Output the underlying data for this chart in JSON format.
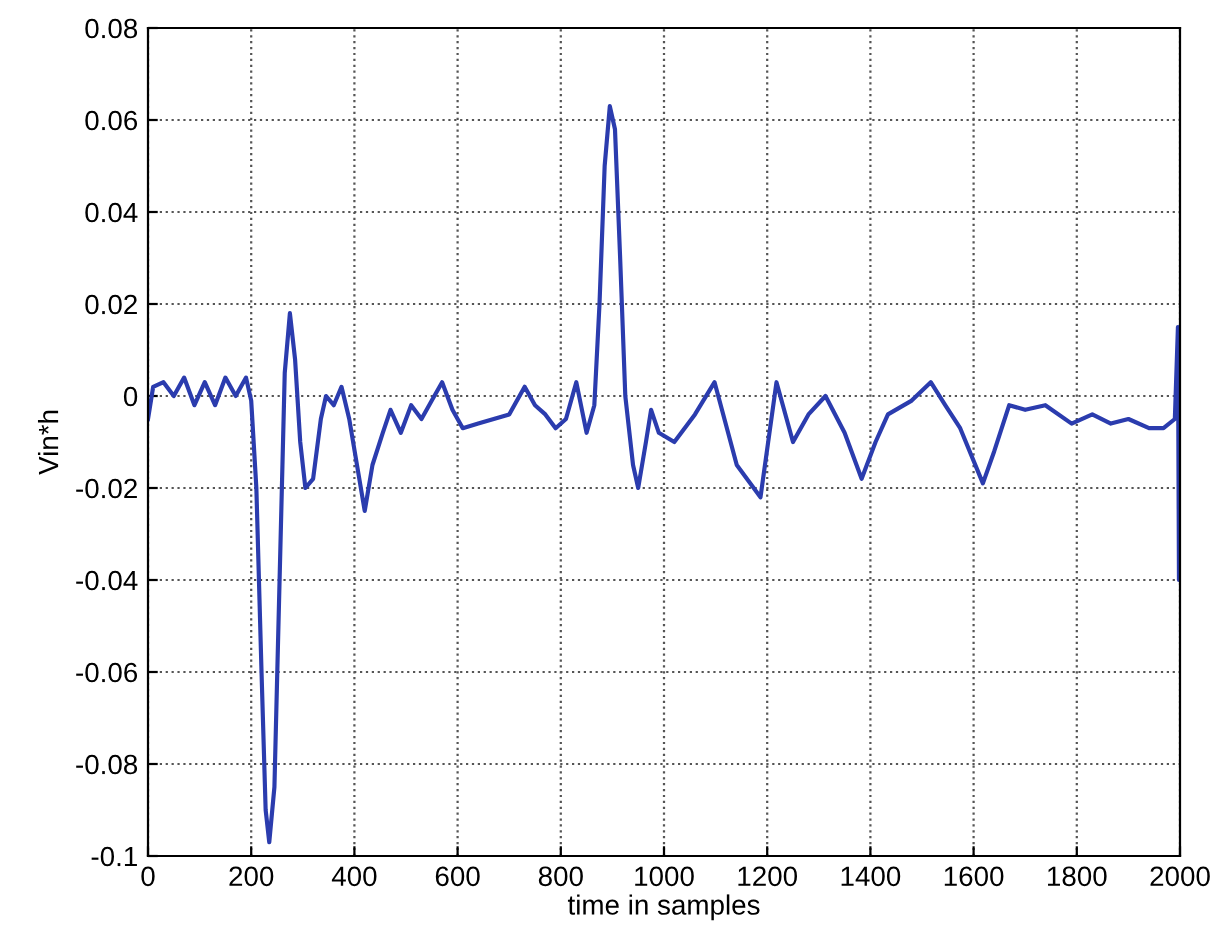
{
  "chart_data": {
    "type": "line",
    "xlabel": "time in samples",
    "ylabel": "Vin*h",
    "xlim": [
      0,
      2000
    ],
    "ylim": [
      -0.1,
      0.08
    ],
    "xticks": [
      0,
      200,
      400,
      600,
      800,
      1000,
      1200,
      1400,
      1600,
      1800,
      2000
    ],
    "yticks": [
      -0.1,
      -0.08,
      -0.06,
      -0.04,
      -0.02,
      0,
      0.02,
      0.04,
      0.06,
      0.08
    ],
    "grid": true,
    "line_style": "solid",
    "marker": "none",
    "series": [
      {
        "color": "#2b3cae",
        "x": [
          0,
          10,
          30,
          50,
          70,
          90,
          110,
          130,
          150,
          170,
          190,
          200,
          210,
          220,
          228,
          235,
          245,
          255,
          265,
          275,
          285,
          295,
          305,
          320,
          335,
          345,
          360,
          375,
          390,
          405,
          420,
          435,
          455,
          470,
          490,
          510,
          530,
          550,
          570,
          590,
          610,
          640,
          670,
          700,
          730,
          750,
          770,
          790,
          810,
          830,
          850,
          865,
          875,
          885,
          895,
          905,
          915,
          925,
          940,
          950,
          965,
          975,
          990,
          1020,
          1060,
          1098,
          1141,
          1187,
          1218,
          1250,
          1280,
          1313,
          1350,
          1383,
          1410,
          1434,
          1480,
          1517,
          1545,
          1574,
          1618,
          1640,
          1669,
          1700,
          1739,
          1790,
          1830,
          1866,
          1900,
          1940,
          1968,
          1990,
          1996,
          1998,
          2000
        ],
        "values": [
          -0.005,
          0.002,
          0.003,
          0.0,
          0.004,
          -0.002,
          0.003,
          -0.002,
          0.004,
          0.0,
          0.004,
          -0.001,
          -0.02,
          -0.06,
          -0.09,
          -0.097,
          -0.085,
          -0.04,
          0.005,
          0.018,
          0.008,
          -0.01,
          -0.02,
          -0.018,
          -0.005,
          0.0,
          -0.002,
          0.002,
          -0.005,
          -0.015,
          -0.025,
          -0.015,
          -0.008,
          -0.003,
          -0.008,
          -0.002,
          -0.005,
          -0.001,
          0.003,
          -0.003,
          -0.007,
          -0.006,
          -0.005,
          -0.004,
          0.002,
          -0.002,
          -0.004,
          -0.007,
          -0.005,
          0.003,
          -0.008,
          -0.002,
          0.02,
          0.05,
          0.063,
          0.058,
          0.03,
          0.0,
          -0.015,
          -0.02,
          -0.01,
          -0.003,
          -0.008,
          -0.01,
          -0.004,
          0.003,
          -0.015,
          -0.022,
          0.003,
          -0.01,
          -0.004,
          0.0,
          -0.008,
          -0.018,
          -0.01,
          -0.004,
          -0.001,
          0.003,
          -0.002,
          -0.007,
          -0.019,
          -0.012,
          -0.002,
          -0.003,
          -0.002,
          -0.006,
          -0.004,
          -0.006,
          -0.005,
          -0.007,
          -0.007,
          -0.005,
          0.015,
          -0.04,
          -0.02
        ]
      }
    ]
  }
}
